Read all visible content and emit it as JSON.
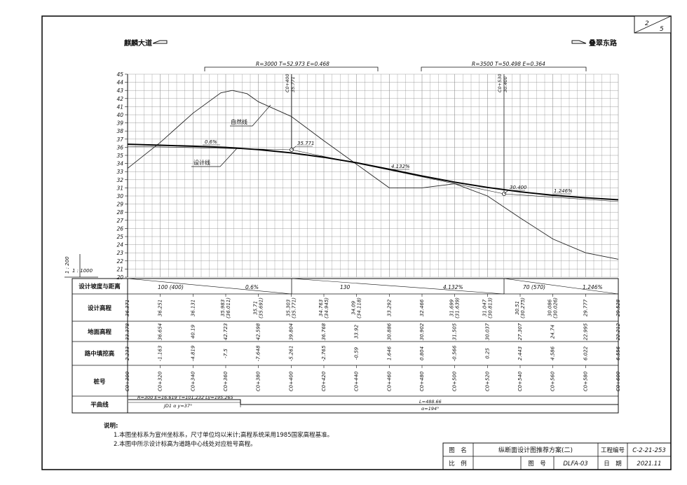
{
  "sheet": {
    "page_no": "2",
    "page_total": "5",
    "left_road": "麒麟大道",
    "right_road": "叠翠东路",
    "scale_v": "1 : 200",
    "scale_h": "1 : 1000",
    "curve_label_1": "R=3000  T=52.973  E=0.468",
    "curve_label_2": "R=3500  T=50.498  E=0.364",
    "vpi_1_chainage": "C0+400",
    "vpi_1_elev": "35.771",
    "vpi_2_chainage": "C0+530",
    "vpi_2_elev": "30.400",
    "point_label_1": "35.771",
    "point_label_2": "30.400",
    "ground_line_label": "自然线",
    "design_line_label": "设计线",
    "grade_label_1": "0.6%",
    "grade_label_2": "4.132%",
    "grade_label_3": "1.246%"
  },
  "chart_data": {
    "type": "line",
    "xlabel": "桩号",
    "ylabel": "",
    "xlim": [
      300,
      600
    ],
    "ylim": [
      20,
      45
    ],
    "grid": true,
    "y_ticks": [
      "20",
      "21",
      "22",
      "23",
      "24",
      "25",
      "26",
      "27",
      "28",
      "29",
      "30",
      "31",
      "32",
      "33",
      "34",
      "35",
      "36",
      "37",
      "38",
      "39",
      "40",
      "41",
      "42",
      "43",
      "44",
      "45"
    ],
    "stations": [
      "C0+300",
      "C0+320",
      "C0+340",
      "C0+360",
      "C0+380",
      "C0+400",
      "C0+420",
      "C0+440",
      "C0+460",
      "C0+480",
      "C0+500",
      "C0+520",
      "C0+540",
      "C0+560",
      "C0+580",
      "C0+600"
    ],
    "x": [
      300,
      320,
      340,
      360,
      380,
      400,
      420,
      440,
      460,
      480,
      500,
      520,
      540,
      560,
      580,
      600
    ],
    "series": [
      {
        "name": "设计线",
        "values": [
          36.371,
          36.251,
          36.131,
          35.983,
          35.71,
          35.303,
          34.763,
          34.09,
          33.292,
          32.466,
          31.699,
          31.047,
          30.51,
          30.086,
          29.777,
          29.528
        ]
      },
      {
        "name": "自然线",
        "values": [
          33.378,
          36.654,
          40.19,
          42.723,
          42.598,
          39.804,
          36.768,
          33.92,
          30.886,
          30.902,
          31.505,
          30.037,
          27.307,
          24.74,
          22.995,
          22.212
        ]
      }
    ],
    "ground_polyline": {
      "x": [
        300,
        320,
        340,
        357,
        364,
        373,
        380,
        400,
        420,
        440,
        460,
        480,
        500,
        520,
        540,
        560,
        580,
        600
      ],
      "y": [
        33.4,
        36.6,
        40.2,
        42.7,
        43.0,
        42.6,
        41.6,
        39.8,
        36.8,
        33.9,
        31.0,
        31.0,
        31.5,
        30.0,
        27.3,
        24.7,
        23.0,
        22.2
      ]
    }
  },
  "table": {
    "row_labels": [
      "设计坡度与距离",
      "设计高程",
      "地面高程",
      "路中填挖高",
      "桩号",
      "平曲线"
    ],
    "grade_segments": [
      {
        "x0": 300,
        "x1": 400,
        "length": "100 (400)",
        "grade": "0.6%"
      },
      {
        "x0": 400,
        "x1": 530,
        "length": "130",
        "grade": "4.132%"
      },
      {
        "x0": 530,
        "x1": 600,
        "length": "70 (570)",
        "grade": "1.246%"
      }
    ],
    "design_elev": [
      "36.371",
      "36.251",
      "36.131",
      "35.983\n(36.011)",
      "35.71\n(35.691)",
      "35.303\n(35.771)",
      "34.763\n(34.945)",
      "34.09\n(34.118)",
      "33.292",
      "32.466",
      "31.699\n(31.639)",
      "31.047\n(30.813)",
      "30.51\n(30.275)",
      "30.086\n(30.026)",
      "29.777",
      "29.528"
    ],
    "ground_elev": [
      "33.378",
      "36.654",
      "40.19",
      "42.723",
      "42.598",
      "39.804",
      "36.768",
      "33.92",
      "30.886",
      "30.902",
      "31.505",
      "30.037",
      "27.307",
      "24.74",
      "22.995",
      "22.212"
    ],
    "fill_cut": [
      "2.233",
      "-1.163",
      "-4.819",
      "-7.5",
      "-7.648",
      "-5.261",
      "-2.765",
      "-0.59",
      "1.646",
      "0.804",
      "-0.566",
      "0.25",
      "2.443",
      "4.586",
      "6.022",
      "6.556"
    ],
    "stations": [
      "C0+300",
      "C0+320",
      "C0+340",
      "C0+360",
      "C0+380",
      "C0+400",
      "C0+420",
      "C0+440",
      "C0+460",
      "C0+480",
      "C0+500",
      "C0+520",
      "C0+540",
      "C0+560",
      "C0+580",
      "C0+600"
    ],
    "horizontal_curve_1": "R=300  E=16.619  T=101.232  Ly=195.265",
    "horizontal_curve_2": "JD1  α y=37°",
    "horizontal_line_1": "L=488.66",
    "horizontal_line_2": "α=194°"
  },
  "notes": {
    "title": "说明:",
    "line1": "1.本图坐标系为宣州坐标系，尺寸单位均以米计;高程系统采用1985国家高程基准。",
    "line2": "2.本图中所示设计标高为道路中心线处对应桩号高程。"
  },
  "title_block": {
    "name_label": "图　名",
    "name_value": "纵断面设计图推荐方案(二)",
    "project_no_label": "工程编号",
    "project_no_value": "C-2-21-253",
    "scale_label": "比　例",
    "drawing_no_label": "图　号",
    "drawing_no_value": "DLFA-03",
    "date_label": "日　期",
    "date_value": "2021.11"
  }
}
